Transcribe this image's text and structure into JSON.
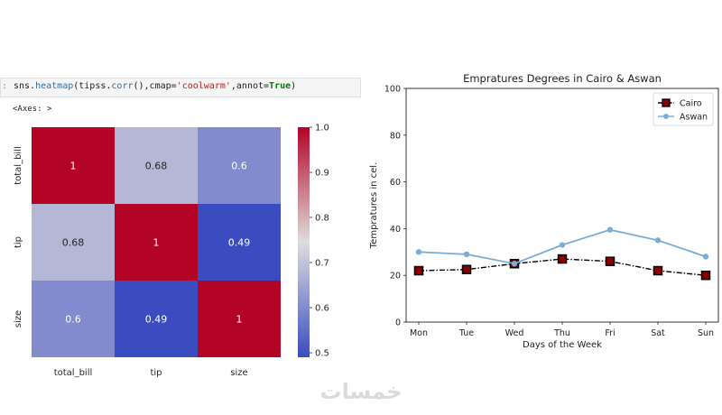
{
  "notebook": {
    "prompt": ":",
    "code": {
      "prefix": "sns.",
      "fn": "heatmap",
      "args_open": "(tipss.",
      "method": "corr",
      "args_mid": "(),cmap=",
      "str": "'coolwarm'",
      "args_end": ",annot=",
      "kw": "True",
      "close": ")"
    },
    "output": "<Axes: >"
  },
  "watermark": "خمسات",
  "chart_data": [
    {
      "type": "heatmap",
      "rows": [
        "total_bill",
        "tip",
        "size"
      ],
      "cols": [
        "total_bill",
        "tip",
        "size"
      ],
      "values": [
        [
          1,
          0.68,
          0.6
        ],
        [
          0.68,
          1,
          0.49
        ],
        [
          0.6,
          0.49,
          1
        ]
      ],
      "annotations": [
        [
          "1",
          "0.68",
          "0.6"
        ],
        [
          "0.68",
          "1",
          "0.49"
        ],
        [
          "0.6",
          "0.49",
          "1"
        ]
      ],
      "colormap": "coolwarm",
      "colors": {
        "low": "#3b4cc0",
        "mid": "#dddddd",
        "high": "#b40426"
      },
      "colorbar": {
        "min": 0.49,
        "max": 1.0,
        "ticks": [
          "0.5",
          "0.6",
          "0.7",
          "0.8",
          "0.9",
          "1.0"
        ],
        "tick_values": [
          0.5,
          0.6,
          0.7,
          0.8,
          0.9,
          1.0
        ]
      }
    },
    {
      "type": "line",
      "title": "Empratures Degrees in Cairo & Aswan",
      "xlabel": "Days of the Week",
      "ylabel": "Tempratures in cel.",
      "categories": [
        "Mon",
        "Tue",
        "Wed",
        "Thu",
        "Fri",
        "Sat",
        "Sun"
      ],
      "series": [
        {
          "name": "Cairo",
          "values": [
            22,
            22.5,
            25,
            27,
            26,
            22,
            20
          ],
          "color": "#000000",
          "marker": "square",
          "marker_face": "#8b0000",
          "linestyle": "dashdot"
        },
        {
          "name": "Aswan",
          "values": [
            30,
            29,
            25,
            33,
            39.5,
            35,
            28
          ],
          "color": "#7aaed6",
          "marker": "circle",
          "linestyle": "solid"
        }
      ],
      "ylim": [
        0,
        100
      ],
      "yticks": [
        0,
        20,
        40,
        60,
        80,
        100
      ],
      "grid": false,
      "legend": "top-right"
    }
  ]
}
